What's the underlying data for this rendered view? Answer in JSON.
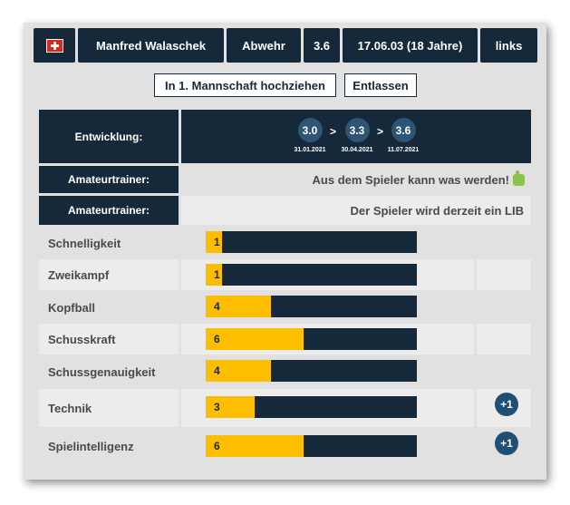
{
  "header": {
    "flag": "swiss-flag-icon",
    "name": "Manfred Walaschek",
    "position": "Abwehr",
    "rating": "3.6",
    "birth": "17.06.03 (18 Jahre)",
    "foot": "links"
  },
  "actions": {
    "promote_label": "In 1. Mannschaft hochziehen",
    "release_label": "Entlassen"
  },
  "development": {
    "label": "Entwicklung:",
    "stages": [
      {
        "value": "3.0",
        "date": "31.01.2021"
      },
      {
        "value": "3.3",
        "date": "30.04.2021"
      },
      {
        "value": "3.6",
        "date": "11.07.2021"
      }
    ],
    "arrow": ">"
  },
  "trainers": [
    {
      "label": "Amateurtrainer:",
      "text": "Aus dem Spieler kann was werden!",
      "icon": "thumbs-up-icon"
    },
    {
      "label": "Amateurtrainer:",
      "text": "Der Spieler wird derzeit ein LIB"
    }
  ],
  "skill_scale_max": 13,
  "skills": [
    {
      "name": "Schnelligkeit",
      "value": "1",
      "level": 1,
      "bonus": ""
    },
    {
      "name": "Zweikampf",
      "value": "1",
      "level": 1,
      "bonus": ""
    },
    {
      "name": "Kopfball",
      "value": "4",
      "level": 4,
      "bonus": ""
    },
    {
      "name": "Schusskraft",
      "value": "6",
      "level": 6,
      "bonus": ""
    },
    {
      "name": "Schussgenauigkeit",
      "value": "4",
      "level": 4,
      "bonus": ""
    },
    {
      "name": "Technik",
      "value": "3",
      "level": 3,
      "bonus": "+1"
    },
    {
      "name": "Spielintelligenz",
      "value": "6",
      "level": 6,
      "bonus": "+1"
    }
  ]
}
